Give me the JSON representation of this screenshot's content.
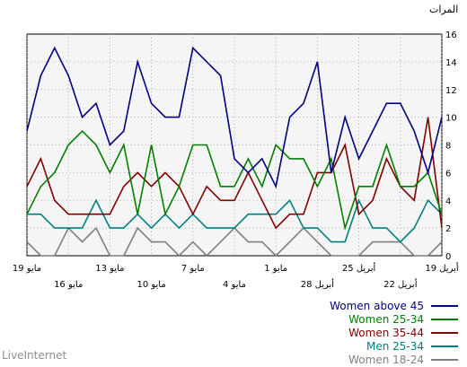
{
  "chart_data": {
    "type": "line",
    "ylabel": "المرات",
    "ylim": [
      0,
      16
    ],
    "yticks": [
      "0",
      "2",
      "4",
      "6",
      "8",
      "10",
      "12",
      "14",
      "16"
    ],
    "grid": true,
    "legend_position": "bottom-right",
    "x_labels_top": [
      "19 مايو",
      "13 مايو",
      "7 مايو",
      "1 مايو",
      "25 أبريل",
      "19 أبريل"
    ],
    "x_labels_bottom": [
      "16 مايو",
      "10 مايو",
      "4 مايو",
      "28 أبريل",
      "22 أبريل"
    ],
    "series": [
      {
        "name": "Women above 45",
        "color": "#00007f",
        "values": [
          9,
          13,
          15,
          13,
          10,
          11,
          8,
          9,
          14,
          11,
          10,
          10,
          15,
          14,
          13,
          7,
          6,
          7,
          5,
          10,
          11,
          14,
          6,
          10,
          7,
          9,
          11,
          11,
          9,
          6,
          10
        ]
      },
      {
        "name": "Women 25-34",
        "color": "#007f00",
        "values": [
          3,
          5,
          6,
          8,
          9,
          8,
          6,
          8,
          3,
          8,
          3,
          5,
          8,
          8,
          5,
          5,
          7,
          5,
          8,
          7,
          7,
          5,
          7,
          2,
          5,
          5,
          8,
          5,
          5,
          6,
          3
        ]
      },
      {
        "name": "Women 35-44",
        "color": "#7f0000",
        "values": [
          5,
          7,
          4,
          3,
          3,
          3,
          3,
          5,
          6,
          5,
          6,
          5,
          3,
          5,
          4,
          4,
          6,
          4,
          2,
          3,
          3,
          6,
          6,
          8,
          3,
          4,
          7,
          5,
          4,
          10,
          2
        ]
      },
      {
        "name": "Men 25-34",
        "color": "#007f7f",
        "values": [
          3,
          3,
          2,
          2,
          2,
          4,
          2,
          2,
          3,
          2,
          3,
          2,
          3,
          2,
          2,
          2,
          3,
          3,
          3,
          4,
          2,
          2,
          1,
          1,
          4,
          2,
          2,
          1,
          2,
          4,
          3
        ]
      },
      {
        "name": "Women 18-24",
        "color": "#7f7f7f",
        "values": [
          1,
          0,
          0,
          2,
          1,
          2,
          0,
          0,
          2,
          1,
          1,
          0,
          1,
          0,
          1,
          2,
          1,
          1,
          0,
          1,
          2,
          1,
          0,
          0,
          0,
          1,
          1,
          1,
          0,
          0,
          1
        ]
      }
    ]
  },
  "watermark": "LiveInternet"
}
